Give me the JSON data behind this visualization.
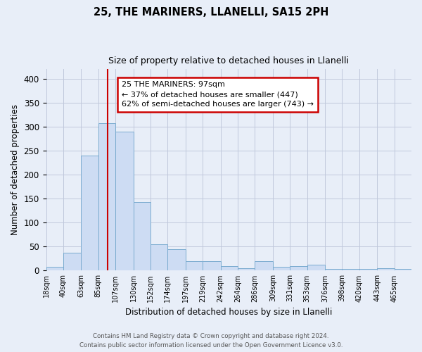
{
  "title": "25, THE MARINERS, LLANELLI, SA15 2PH",
  "subtitle": "Size of property relative to detached houses in Llanelli",
  "xlabel": "Distribution of detached houses by size in Llanelli",
  "ylabel": "Number of detached properties",
  "bin_labels": [
    "18sqm",
    "40sqm",
    "63sqm",
    "85sqm",
    "107sqm",
    "130sqm",
    "152sqm",
    "174sqm",
    "197sqm",
    "219sqm",
    "242sqm",
    "264sqm",
    "286sqm",
    "309sqm",
    "331sqm",
    "353sqm",
    "376sqm",
    "398sqm",
    "420sqm",
    "443sqm",
    "465sqm"
  ],
  "bar_heights": [
    8,
    38,
    240,
    307,
    290,
    143,
    55,
    45,
    20,
    20,
    10,
    5,
    20,
    8,
    10,
    12,
    4,
    3,
    3,
    5,
    3
  ],
  "bar_color": "#cddcf3",
  "bar_edge_color": "#7aabcf",
  "vline_color": "#cc0000",
  "ylim": [
    0,
    420
  ],
  "property_sqm": 97,
  "annotation_title": "25 THE MARINERS: 97sqm",
  "annotation_line1": "← 37% of detached houses are smaller (447)",
  "annotation_line2": "62% of semi-detached houses are larger (743) →",
  "annotation_box_facecolor": "white",
  "annotation_box_edgecolor": "#cc0000",
  "footer1": "Contains HM Land Registry data © Crown copyright and database right 2024.",
  "footer2": "Contains public sector information licensed under the Open Government Licence v3.0.",
  "background_color": "#e8eef8",
  "grid_color": "#c0c8dc",
  "bin_edges": [
    18,
    40,
    63,
    85,
    107,
    130,
    152,
    174,
    197,
    219,
    242,
    264,
    286,
    309,
    331,
    353,
    376,
    398,
    420,
    443,
    465,
    487
  ]
}
